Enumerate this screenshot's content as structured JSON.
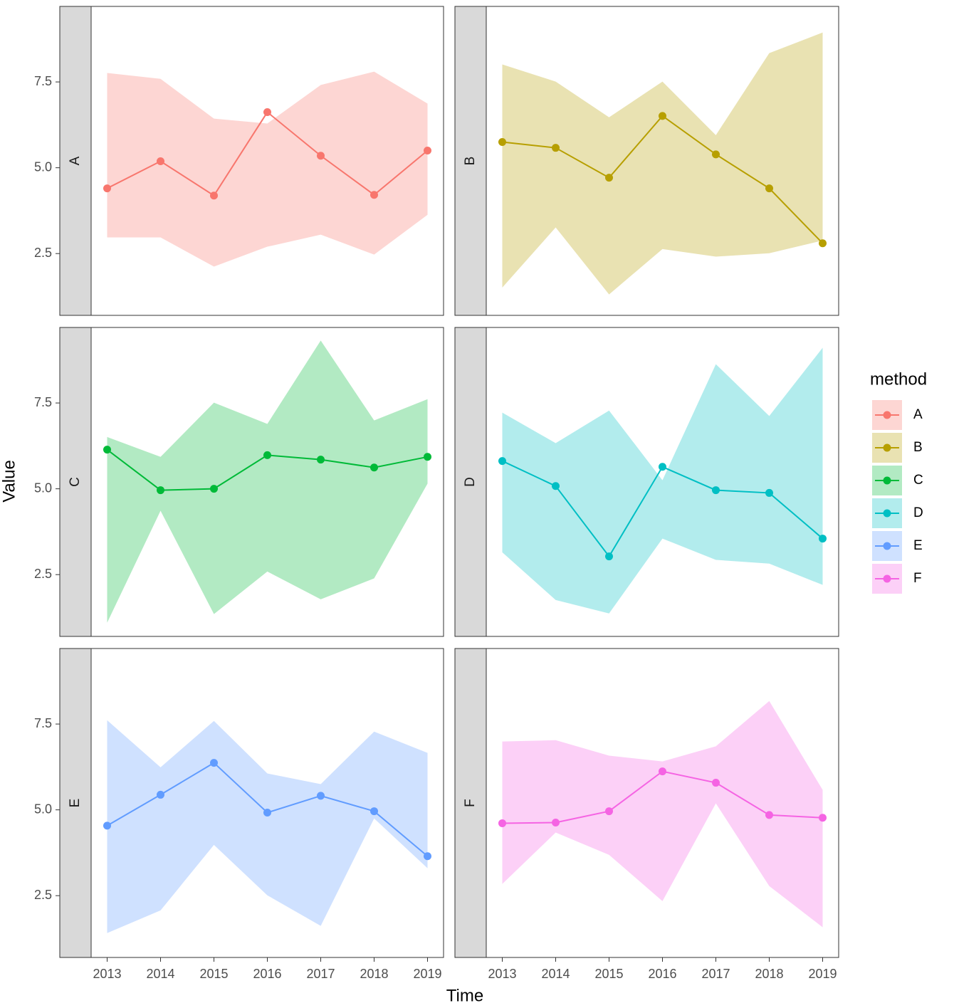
{
  "chart_data": {
    "type": "line",
    "xlabel": "Time",
    "ylabel": "Value",
    "legend_title": "method",
    "x": [
      2013,
      2014,
      2015,
      2016,
      2017,
      2018,
      2019
    ],
    "xlim": [
      2012.7,
      2019.3
    ],
    "xticks": [
      2013,
      2014,
      2015,
      2016,
      2017,
      2018,
      2019
    ],
    "ylim": [
      0.7,
      9.7
    ],
    "yticks": [
      2.5,
      {
        "value": 5,
        "label": "5.0"
      },
      7.5
    ],
    "series": [
      {
        "name": "A",
        "color": "#F8766D",
        "values": [
          4.4,
          5.19,
          4.19,
          6.62,
          5.35,
          4.21,
          5.5
        ],
        "upper": [
          7.76,
          7.59,
          6.43,
          6.29,
          7.41,
          7.8,
          6.87
        ],
        "lower": [
          2.97,
          2.97,
          2.12,
          2.7,
          3.05,
          2.47,
          3.63
        ]
      },
      {
        "name": "B",
        "color": "#B79F00",
        "values": [
          5.75,
          5.58,
          4.71,
          6.51,
          5.39,
          4.4,
          2.8
        ],
        "upper": [
          8.01,
          7.51,
          6.47,
          7.51,
          5.95,
          8.34,
          8.94
        ],
        "lower": [
          1.51,
          3.26,
          1.31,
          2.63,
          2.41,
          2.51,
          2.88
        ]
      },
      {
        "name": "C",
        "color": "#00BA38",
        "values": [
          6.14,
          4.96,
          5.0,
          5.98,
          5.85,
          5.62,
          5.93
        ],
        "upper": [
          6.51,
          5.93,
          7.51,
          6.89,
          9.32,
          6.99,
          7.61
        ],
        "lower": [
          1.1,
          4.36,
          1.35,
          2.59,
          1.78,
          2.39,
          5.15
        ]
      },
      {
        "name": "D",
        "color": "#00BFC4",
        "values": [
          5.81,
          5.08,
          3.03,
          5.64,
          4.96,
          4.88,
          3.55
        ],
        "upper": [
          7.22,
          6.33,
          7.28,
          5.25,
          8.63,
          7.12,
          9.11
        ],
        "lower": [
          3.15,
          1.76,
          1.37,
          3.55,
          2.93,
          2.82,
          2.2
        ]
      },
      {
        "name": "E",
        "color": "#619CFF",
        "values": [
          4.54,
          5.44,
          6.37,
          4.92,
          5.41,
          4.96,
          3.65
        ],
        "upper": [
          7.61,
          6.24,
          7.59,
          6.06,
          5.75,
          7.28,
          6.66
        ],
        "lower": [
          1.41,
          2.07,
          3.98,
          2.51,
          1.62,
          4.75,
          3.3
        ]
      },
      {
        "name": "F",
        "color": "#F564E3",
        "values": [
          4.61,
          4.63,
          4.96,
          6.12,
          5.79,
          4.85,
          4.77
        ],
        "upper": [
          6.99,
          7.03,
          6.58,
          6.41,
          6.85,
          8.17,
          5.58
        ],
        "lower": [
          2.84,
          4.34,
          3.69,
          2.34,
          5.19,
          2.78,
          1.58
        ]
      }
    ]
  }
}
